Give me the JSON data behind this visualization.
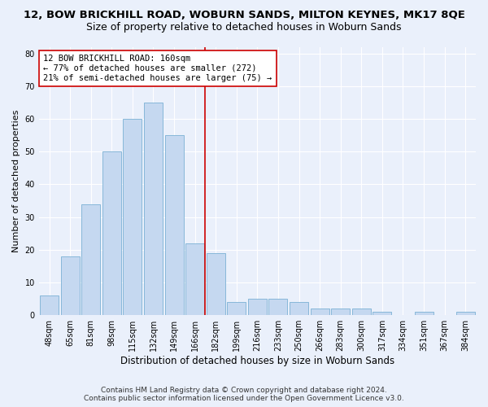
{
  "title": "12, BOW BRICKHILL ROAD, WOBURN SANDS, MILTON KEYNES, MK17 8QE",
  "subtitle": "Size of property relative to detached houses in Woburn Sands",
  "xlabel": "Distribution of detached houses by size in Woburn Sands",
  "ylabel": "Number of detached properties",
  "categories": [
    "48sqm",
    "65sqm",
    "81sqm",
    "98sqm",
    "115sqm",
    "132sqm",
    "149sqm",
    "166sqm",
    "182sqm",
    "199sqm",
    "216sqm",
    "233sqm",
    "250sqm",
    "266sqm",
    "283sqm",
    "300sqm",
    "317sqm",
    "334sqm",
    "351sqm",
    "367sqm",
    "384sqm"
  ],
  "values": [
    6,
    18,
    34,
    50,
    60,
    65,
    55,
    22,
    19,
    4,
    5,
    5,
    4,
    2,
    2,
    2,
    1,
    0,
    1,
    0,
    1
  ],
  "bar_color": "#c5d8f0",
  "bar_edge_color": "#7ab0d4",
  "vline_color": "#cc0000",
  "vline_x_index": 7.5,
  "annotation_line1": "12 BOW BRICKHILL ROAD: 160sqm",
  "annotation_line2": "← 77% of detached houses are smaller (272)",
  "annotation_line3": "21% of semi-detached houses are larger (75) →",
  "annotation_box_facecolor": "#ffffff",
  "annotation_box_edgecolor": "#cc0000",
  "ylim": [
    0,
    82
  ],
  "yticks": [
    0,
    10,
    20,
    30,
    40,
    50,
    60,
    70,
    80
  ],
  "footnote1": "Contains HM Land Registry data © Crown copyright and database right 2024.",
  "footnote2": "Contains public sector information licensed under the Open Government Licence v3.0.",
  "bg_color": "#eaf0fb",
  "plot_bg_color": "#eaf0fb",
  "title_fontsize": 9.5,
  "subtitle_fontsize": 9,
  "xlabel_fontsize": 8.5,
  "ylabel_fontsize": 8,
  "tick_fontsize": 7,
  "annotation_fontsize": 7.5,
  "footnote_fontsize": 6.5
}
